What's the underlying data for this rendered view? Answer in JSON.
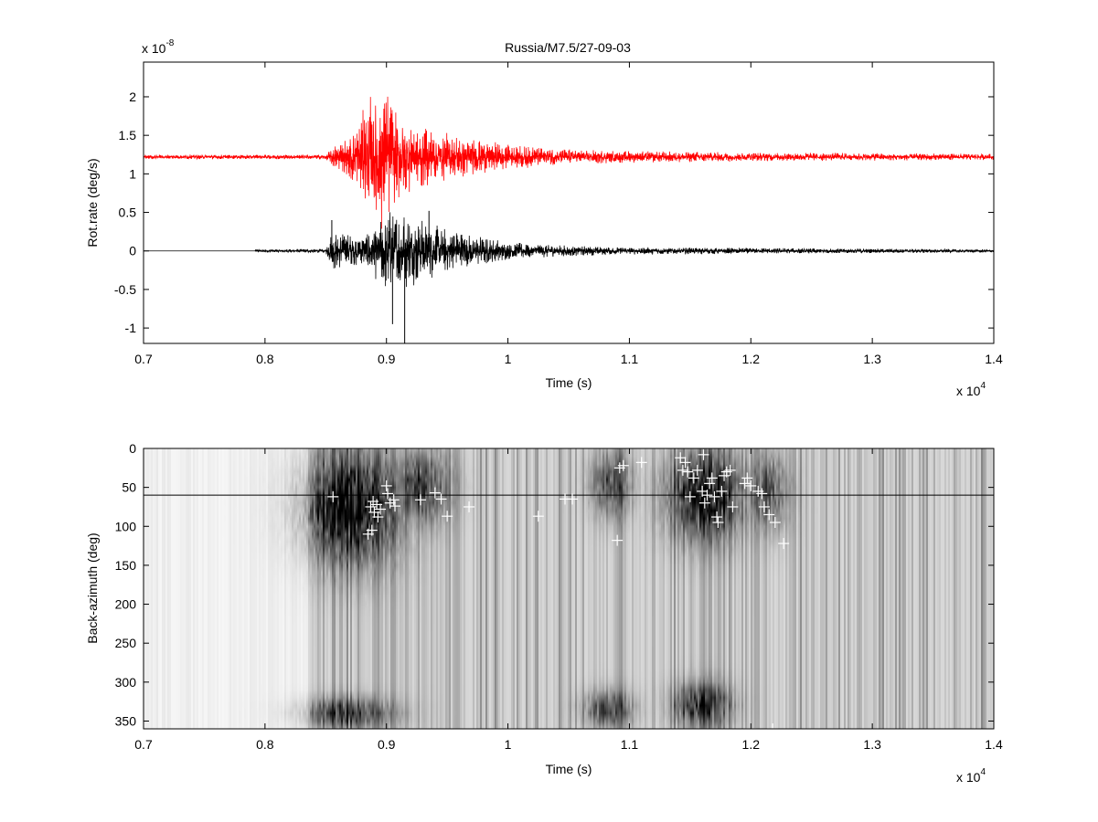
{
  "chart_data": [
    {
      "type": "line",
      "title": "Russia/M7.5/27-09-03",
      "xlabel": "Time (s)",
      "ylabel": "Rot.rate (deg/s)",
      "x_exponent_label": "x 10",
      "x_exponent": "4",
      "y_exponent_label": "x 10",
      "y_exponent": "-8",
      "xlim": [
        7000,
        14000
      ],
      "ylim": [
        -1.2,
        2.45
      ],
      "x_ticks": [
        7000,
        8000,
        9000,
        10000,
        11000,
        12000,
        13000,
        14000
      ],
      "x_tick_labels": [
        "0.7",
        "0.8",
        "0.9",
        "1",
        "1.1",
        "1.2",
        "1.3",
        "1.4"
      ],
      "y_ticks": [
        -1,
        -0.5,
        0,
        0.5,
        1,
        1.5,
        2
      ],
      "y_tick_labels": [
        "-1",
        "-0.5",
        "0",
        "0.5",
        "1",
        "1.5",
        "2"
      ],
      "series": [
        {
          "color": "#ff0000",
          "baseline": 1.22,
          "envelope": [
            [
              7000,
              0.03
            ],
            [
              8500,
              0.03
            ],
            [
              8550,
              0.12
            ],
            [
              8700,
              0.3
            ],
            [
              8850,
              0.75
            ],
            [
              8950,
              1.1
            ],
            [
              9050,
              0.7
            ],
            [
              9200,
              0.45
            ],
            [
              9500,
              0.32
            ],
            [
              9800,
              0.22
            ],
            [
              10100,
              0.15
            ],
            [
              10500,
              0.1
            ],
            [
              11000,
              0.08
            ],
            [
              12000,
              0.06
            ],
            [
              13000,
              0.05
            ],
            [
              14000,
              0.04
            ]
          ]
        },
        {
          "color": "#000000",
          "baseline": 0,
          "flat_until": 7920,
          "envelope": [
            [
              7920,
              0.02
            ],
            [
              8500,
              0.03
            ],
            [
              8550,
              0.25
            ],
            [
              8800,
              0.2
            ],
            [
              9000,
              0.55
            ],
            [
              9150,
              0.5
            ],
            [
              9400,
              0.35
            ],
            [
              9700,
              0.22
            ],
            [
              10000,
              0.12
            ],
            [
              10500,
              0.07
            ],
            [
              11000,
              0.05
            ],
            [
              12000,
              0.04
            ],
            [
              13000,
              0.03
            ],
            [
              14000,
              0.02
            ]
          ],
          "spikes": [
            [
              8550,
              0.4
            ],
            [
              9150,
              -1.2
            ],
            [
              9050,
              -0.95
            ],
            [
              9350,
              0.52
            ]
          ]
        }
      ]
    },
    {
      "type": "heatmap",
      "xlabel": "Time (s)",
      "ylabel": "Back-azimuth (deg)",
      "x_exponent_label": "x 10",
      "x_exponent": "4",
      "xlim": [
        7000,
        14000
      ],
      "ylim": [
        0,
        360
      ],
      "y_inverted": true,
      "x_ticks": [
        7000,
        8000,
        9000,
        10000,
        11000,
        12000,
        13000,
        14000
      ],
      "x_tick_labels": [
        "0.7",
        "0.8",
        "0.9",
        "1",
        "1.1",
        "1.2",
        "1.3",
        "1.4"
      ],
      "y_ticks": [
        0,
        50,
        100,
        150,
        200,
        250,
        300,
        350
      ],
      "y_tick_labels": [
        "0",
        "50",
        "100",
        "150",
        "200",
        "250",
        "300",
        "350"
      ],
      "colormap": "gray, white = low, black = high",
      "reference_line_baz": 60,
      "dark_regions": [
        {
          "t": [
            8350,
            9050
          ],
          "baz": [
            0,
            150
          ],
          "strength": 0.95
        },
        {
          "t": [
            9050,
            9500
          ],
          "baz": [
            0,
            100
          ],
          "strength": 0.6
        },
        {
          "t": [
            10700,
            11000
          ],
          "baz": [
            0,
            90
          ],
          "strength": 0.55
        },
        {
          "t": [
            11350,
            11900
          ],
          "baz": [
            0,
            120
          ],
          "strength": 0.85
        },
        {
          "t": [
            12000,
            12300
          ],
          "baz": [
            0,
            110
          ],
          "strength": 0.5
        },
        {
          "t": [
            8350,
            9000
          ],
          "baz": [
            320,
            360
          ],
          "strength": 0.7
        },
        {
          "t": [
            10650,
            11000
          ],
          "baz": [
            310,
            360
          ],
          "strength": 0.6
        },
        {
          "t": [
            11400,
            11800
          ],
          "baz": [
            300,
            360
          ],
          "strength": 0.75
        }
      ],
      "picks": [
        [
          8560,
          62
        ],
        [
          8850,
          110
        ],
        [
          8870,
          75
        ],
        [
          8880,
          105
        ],
        [
          8890,
          68
        ],
        [
          8900,
          82
        ],
        [
          8920,
          72
        ],
        [
          8930,
          88
        ],
        [
          8950,
          78
        ],
        [
          9000,
          48
        ],
        [
          9010,
          58
        ],
        [
          9030,
          70
        ],
        [
          9060,
          66
        ],
        [
          9070,
          74
        ],
        [
          9280,
          66
        ],
        [
          9400,
          57
        ],
        [
          9450,
          65
        ],
        [
          9500,
          87
        ],
        [
          9680,
          75
        ],
        [
          10250,
          87
        ],
        [
          10470,
          65
        ],
        [
          10530,
          65
        ],
        [
          10900,
          118
        ],
        [
          10920,
          25
        ],
        [
          10950,
          22
        ],
        [
          11100,
          18
        ],
        [
          11420,
          12
        ],
        [
          11440,
          28
        ],
        [
          11460,
          18
        ],
        [
          11480,
          30
        ],
        [
          11500,
          62
        ],
        [
          11530,
          38
        ],
        [
          11560,
          28
        ],
        [
          11600,
          55
        ],
        [
          11610,
          8
        ],
        [
          11620,
          70
        ],
        [
          11640,
          60
        ],
        [
          11660,
          45
        ],
        [
          11680,
          38
        ],
        [
          11700,
          62
        ],
        [
          11720,
          88
        ],
        [
          11730,
          95
        ],
        [
          11760,
          55
        ],
        [
          11780,
          35
        ],
        [
          11800,
          30
        ],
        [
          11830,
          28
        ],
        [
          11850,
          75
        ],
        [
          11950,
          45
        ],
        [
          11970,
          38
        ],
        [
          12000,
          48
        ],
        [
          12060,
          55
        ],
        [
          12090,
          58
        ],
        [
          12110,
          75
        ],
        [
          12150,
          85
        ],
        [
          12200,
          95
        ],
        [
          12270,
          122
        ],
        [
          12000,
          360
        ],
        [
          12180,
          360
        ]
      ]
    }
  ]
}
